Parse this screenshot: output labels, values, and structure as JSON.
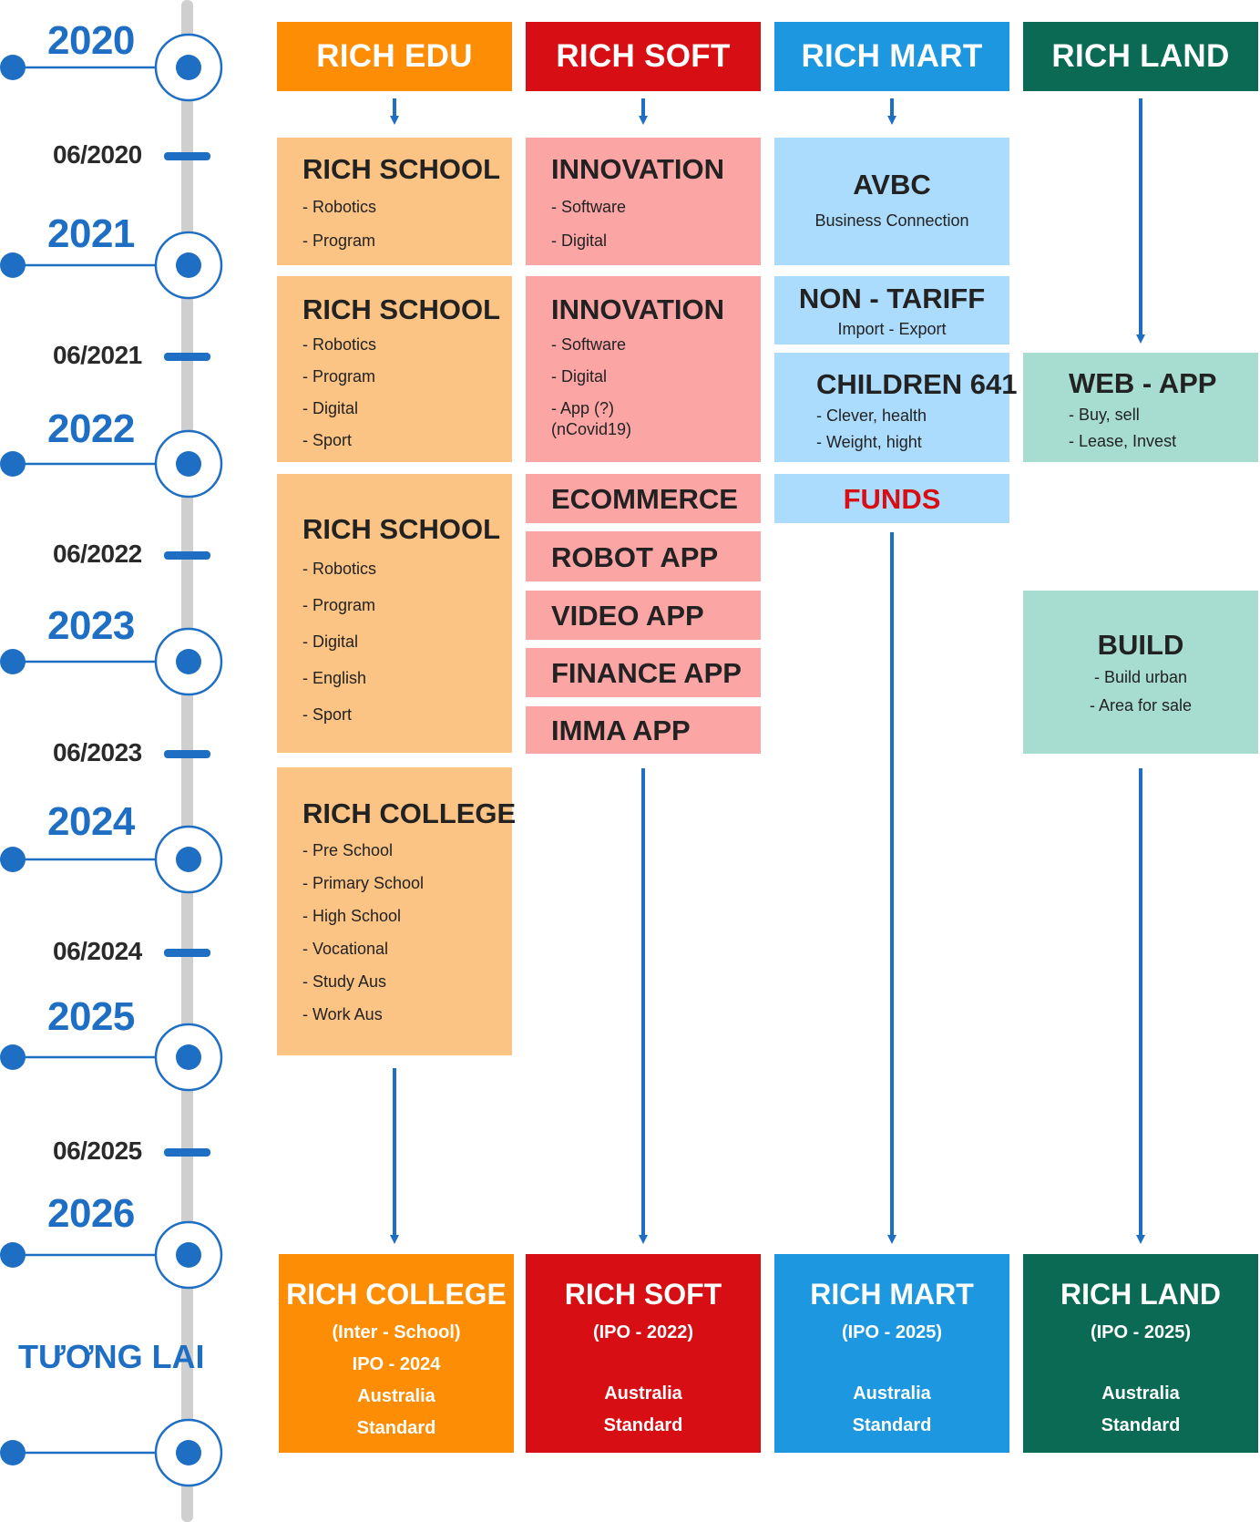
{
  "timeline": {
    "years": [
      "2020",
      "2021",
      "2022",
      "2023",
      "2024",
      "2025",
      "2026"
    ],
    "months": [
      "06/2020",
      "06/2021",
      "06/2022",
      "06/2023",
      "06/2024",
      "06/2025"
    ],
    "future_label": "TƯƠNG LAI",
    "color": "#1e6fc4"
  },
  "headers": {
    "edu": "RICH EDU",
    "soft": "RICH SOFT",
    "mart": "RICH MART",
    "land": "RICH LAND"
  },
  "edu": {
    "school1": {
      "title": "RICH SCHOOL",
      "items": [
        "- Robotics",
        "- Program"
      ]
    },
    "school2": {
      "title": "RICH SCHOOL",
      "items": [
        "- Robotics",
        "- Program",
        "- Digital",
        "- Sport"
      ]
    },
    "school3": {
      "title": "RICH SCHOOL",
      "items": [
        "- Robotics",
        "- Program",
        "- Digital",
        "- English",
        "- Sport"
      ]
    },
    "college": {
      "title": "RICH COLLEGE",
      "items": [
        "- Pre School",
        "- Primary School",
        "- High School",
        "- Vocational",
        "- Study Aus",
        "- Work Aus"
      ]
    }
  },
  "soft": {
    "innovation1": {
      "title": "INNOVATION",
      "items": [
        "- Software",
        "- Digital"
      ]
    },
    "innovation2": {
      "title": "INNOVATION",
      "items": [
        "- Software",
        "- Digital",
        "- App (?)",
        "(nCovid19)"
      ]
    },
    "apps": [
      "ECOMMERCE",
      "ROBOT APP",
      "VIDEO APP",
      "FINANCE APP",
      "IMMA APP"
    ]
  },
  "mart": {
    "avbc": {
      "title": "AVBC",
      "subtitle": "Business Connection"
    },
    "tariff": {
      "title": "NON - TARIFF",
      "subtitle": "Import - Export"
    },
    "children": {
      "title": "CHILDREN 641",
      "items": [
        "- Clever, health",
        "- Weight, hight"
      ]
    },
    "funds": {
      "title": "FUNDS",
      "color": "#d70f14"
    }
  },
  "land": {
    "webapp": {
      "title": "WEB - APP",
      "items": [
        "- Buy, sell",
        "- Lease, Invest"
      ]
    },
    "build": {
      "title": "BUILD",
      "items": [
        "- Build urban",
        "- Area for sale"
      ]
    }
  },
  "finals": {
    "edu": {
      "title": "RICH COLLEGE",
      "lines": [
        "(Inter - School)",
        "IPO - 2024",
        "Australia",
        "Standard"
      ]
    },
    "soft": {
      "title": "RICH SOFT",
      "lines": [
        "(IPO - 2022)",
        "Australia",
        "Standard"
      ]
    },
    "mart": {
      "title": "RICH MART",
      "lines": [
        "(IPO - 2025)",
        "Australia",
        "Standard"
      ]
    },
    "land": {
      "title": "RICH LAND",
      "lines": [
        "(IPO - 2025)",
        "Australia",
        "Standard"
      ]
    }
  },
  "colors": {
    "edu": "#fc8d04",
    "soft": "#d70f14",
    "mart": "#1d97e0",
    "land": "#0b6a54",
    "edu_light": "#fbc484",
    "soft_light": "#fca5a5",
    "mart_light": "#acdcfd",
    "land_light": "#a6ddd0",
    "arrow": "#1e6fc4",
    "track": "#cfcfcf"
  }
}
